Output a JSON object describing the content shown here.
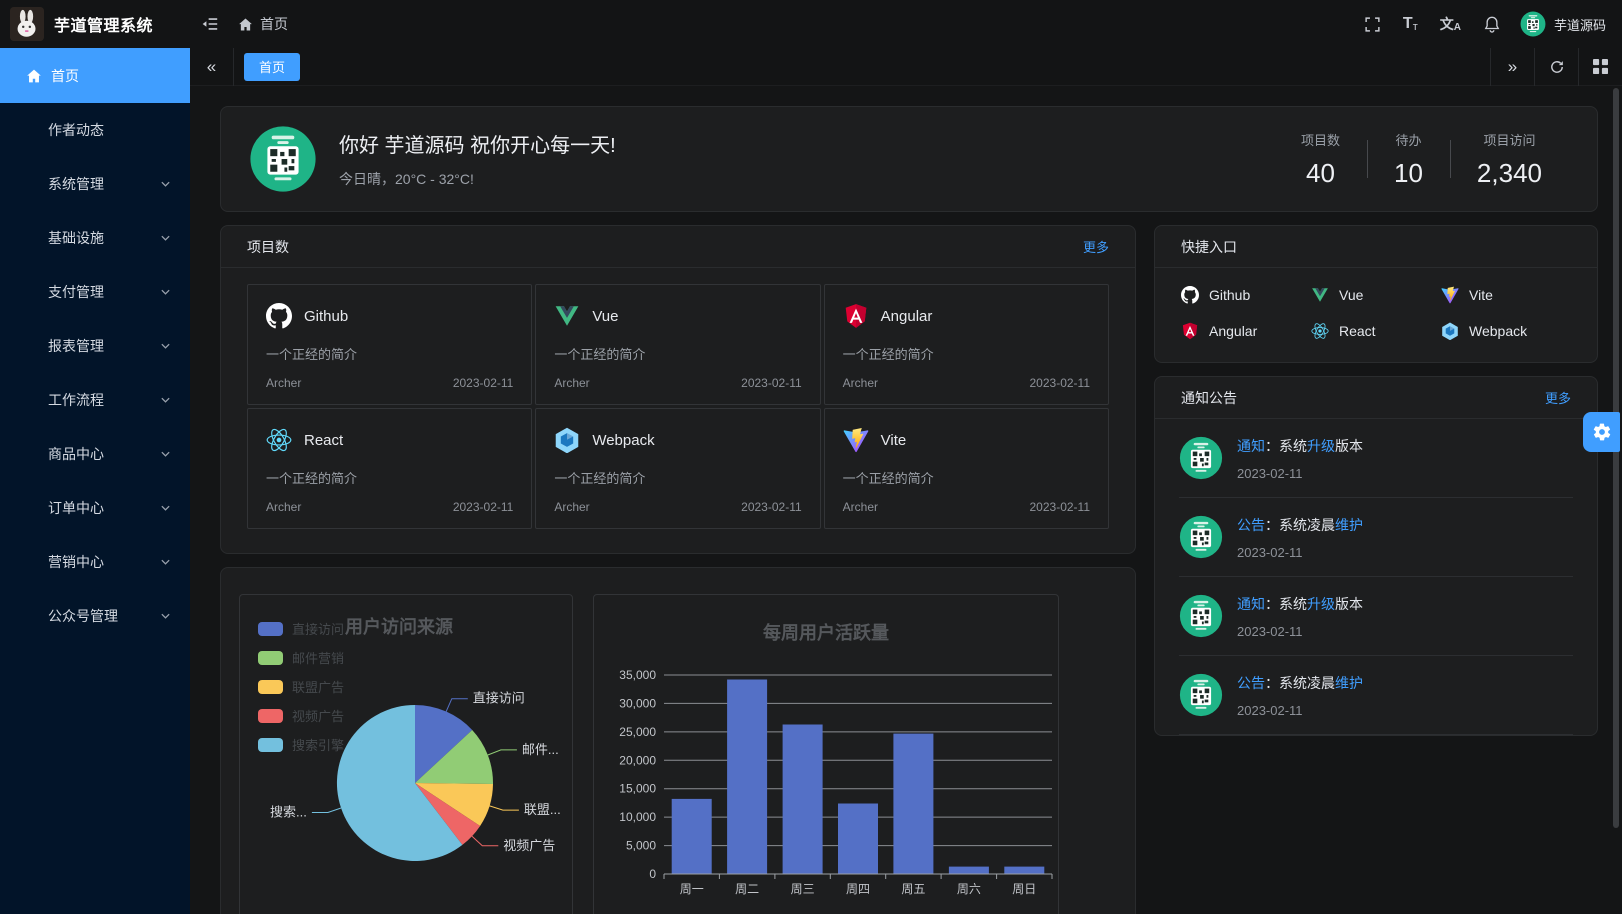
{
  "header": {
    "title": "芋道管理系统",
    "breadcrumb_home": "首页",
    "font_icon": {
      "large": "T",
      "small": "т"
    },
    "lang_icon": {
      "primary": "文",
      "secondary": "A"
    },
    "username": "芋道源码"
  },
  "sidebar": {
    "items": [
      {
        "key": "home",
        "label": "首页",
        "active": true
      },
      {
        "key": "author-news",
        "label": "作者动态"
      },
      {
        "key": "system",
        "label": "系统管理",
        "expandable": true
      },
      {
        "key": "infrastructure",
        "label": "基础设施",
        "expandable": true
      },
      {
        "key": "payment",
        "label": "支付管理",
        "expandable": true
      },
      {
        "key": "report",
        "label": "报表管理",
        "expandable": true
      },
      {
        "key": "workflow",
        "label": "工作流程",
        "expandable": true
      },
      {
        "key": "product",
        "label": "商品中心",
        "expandable": true
      },
      {
        "key": "order",
        "label": "订单中心",
        "expandable": true
      },
      {
        "key": "marketing",
        "label": "营销中心",
        "expandable": true
      },
      {
        "key": "official-account",
        "label": "公众号管理",
        "expandable": true
      }
    ]
  },
  "tabbar": {
    "active_tab": "首页",
    "collapse_left": "«",
    "collapse_right": "»"
  },
  "welcome": {
    "greeting": "你好 芋道源码 祝你开心每一天!",
    "weather": "今日晴，20°C - 32°C!",
    "stats": [
      {
        "label": "项目数",
        "value": "40"
      },
      {
        "label": "待办",
        "value": "10"
      },
      {
        "label": "项目访问",
        "value": "2,340"
      }
    ]
  },
  "projects": {
    "title": "项目数",
    "more_label": "更多",
    "items": [
      {
        "name": "Github",
        "icon": "github",
        "desc": "一个正经的简介",
        "author": "Archer",
        "date": "2023-02-11"
      },
      {
        "name": "Vue",
        "icon": "vue",
        "desc": "一个正经的简介",
        "author": "Archer",
        "date": "2023-02-11"
      },
      {
        "name": "Angular",
        "icon": "angular",
        "desc": "一个正经的简介",
        "author": "Archer",
        "date": "2023-02-11"
      },
      {
        "name": "React",
        "icon": "react",
        "desc": "一个正经的简介",
        "author": "Archer",
        "date": "2023-02-11"
      },
      {
        "name": "Webpack",
        "icon": "webpack",
        "desc": "一个正经的简介",
        "author": "Archer",
        "date": "2023-02-11"
      },
      {
        "name": "Vite",
        "icon": "vite",
        "desc": "一个正经的简介",
        "author": "Archer",
        "date": "2023-02-11"
      }
    ]
  },
  "quick_links": {
    "title": "快捷入口",
    "items": [
      {
        "name": "Github",
        "icon": "github"
      },
      {
        "name": "Vue",
        "icon": "vue"
      },
      {
        "name": "Vite",
        "icon": "vite"
      },
      {
        "name": "Angular",
        "icon": "angular"
      },
      {
        "name": "React",
        "icon": "react"
      },
      {
        "name": "Webpack",
        "icon": "webpack"
      }
    ]
  },
  "notices": {
    "title": "通知公告",
    "more_label": "更多",
    "items": [
      {
        "segments": [
          [
            "通知",
            1
          ],
          [
            "：系统",
            0
          ],
          [
            "升级",
            1
          ],
          [
            "版本",
            0
          ]
        ],
        "date": "2023-02-11"
      },
      {
        "segments": [
          [
            "公告",
            1
          ],
          [
            "：系统凌晨",
            0
          ],
          [
            "维护",
            1
          ]
        ],
        "date": "2023-02-11"
      },
      {
        "segments": [
          [
            "通知",
            1
          ],
          [
            "：系统",
            0
          ],
          [
            "升级",
            1
          ],
          [
            "版本",
            0
          ]
        ],
        "date": "2023-02-11"
      },
      {
        "segments": [
          [
            "公告",
            1
          ],
          [
            "：系统凌晨",
            0
          ],
          [
            "维护",
            1
          ]
        ],
        "date": "2023-02-11"
      }
    ]
  },
  "chart_data": [
    {
      "type": "pie",
      "title": "用户访问来源",
      "legend_position": "top-left",
      "slices": [
        {
          "name": "直接访问",
          "value": 13.1,
          "color": "#5470c6",
          "label": "直接访问"
        },
        {
          "name": "邮件营销",
          "value": 12.1,
          "color": "#91cc75",
          "label": "邮件..."
        },
        {
          "name": "联盟广告",
          "value": 9.1,
          "color": "#fac858",
          "label": "联盟..."
        },
        {
          "name": "视频广告",
          "value": 5.3,
          "color": "#ee6666",
          "label": "视频广告"
        },
        {
          "name": "搜索引擎",
          "value": 60.4,
          "color": "#73c0de",
          "label": "搜索..."
        }
      ]
    },
    {
      "type": "bar",
      "title": "每周用户活跃量",
      "categories": [
        "周一",
        "周二",
        "周三",
        "周四",
        "周五",
        "周六",
        "周日"
      ],
      "values": [
        13200,
        34200,
        26300,
        12400,
        24700,
        1300,
        1300
      ],
      "ylim": [
        0,
        35000
      ],
      "ytick_step": 5000,
      "bar_color": "#5470c6",
      "grid": true
    }
  ],
  "colors": {
    "accent": "#409eff",
    "sidebar_bg": "#021429",
    "card_bg": "#1d1e1f",
    "page_bg": "#141516",
    "palette": [
      "#5470c6",
      "#91cc75",
      "#fac858",
      "#ee6666",
      "#73c0de"
    ]
  }
}
